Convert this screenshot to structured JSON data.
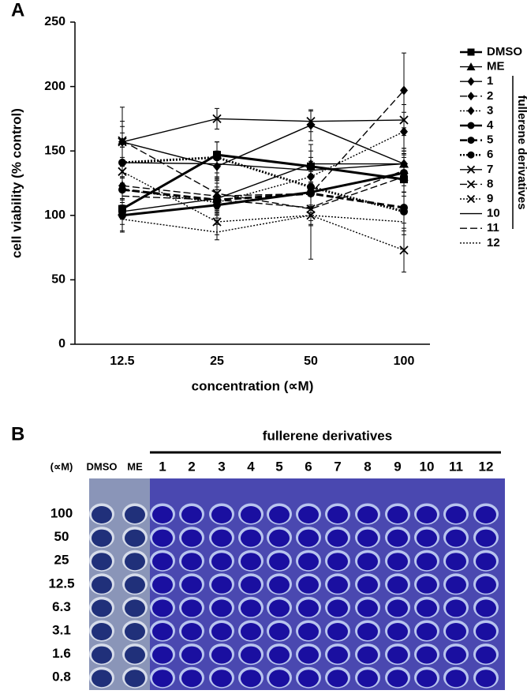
{
  "chart_data": {
    "type": "line",
    "panel_label": "A",
    "x_label": "concentration (∝M)",
    "y_label": "cell viability (% control)",
    "categories": [
      "12.5",
      "25",
      "50",
      "100"
    ],
    "ylim": [
      0,
      250
    ],
    "yticks": [
      0,
      50,
      100,
      150,
      200,
      250
    ],
    "legend_group_label": "fullerene derivatives",
    "legend_position": "right",
    "series": [
      {
        "name": "DMSO",
        "color": "#000000",
        "marker": "square",
        "dash": "solid",
        "thick": true,
        "values": [
          105,
          147,
          138,
          128
        ],
        "errors": [
          8,
          10,
          12,
          10
        ]
      },
      {
        "name": "ME",
        "color": "#000000",
        "marker": "triangle",
        "dash": "solid",
        "thick": false,
        "values": [
          103,
          113,
          140,
          140
        ],
        "errors": [
          10,
          12,
          15,
          12
        ]
      },
      {
        "name": "1",
        "color": "#000000",
        "marker": "diamond",
        "dash": "solid",
        "thick": false,
        "values": [
          157,
          138,
          170,
          140
        ],
        "errors": [
          12,
          10,
          12,
          12
        ]
      },
      {
        "name": "2",
        "color": "#000000",
        "marker": "diamond",
        "dash": "dashed",
        "thick": false,
        "values": [
          123,
          115,
          117,
          197
        ],
        "errors": [
          15,
          12,
          15,
          29
        ]
      },
      {
        "name": "3",
        "color": "#000000",
        "marker": "diamond",
        "dash": "dotted",
        "thick": false,
        "values": [
          120,
          110,
          130,
          165
        ],
        "errors": [
          10,
          10,
          12,
          15
        ]
      },
      {
        "name": "4",
        "color": "#000000",
        "marker": "circle",
        "dash": "solid",
        "thick": true,
        "values": [
          100,
          108,
          118,
          133
        ],
        "errors": [
          12,
          10,
          12,
          15
        ]
      },
      {
        "name": "5",
        "color": "#000000",
        "marker": "circle",
        "dash": "dashed",
        "thick": true,
        "values": [
          120,
          112,
          117,
          106
        ],
        "errors": [
          10,
          10,
          12,
          12
        ]
      },
      {
        "name": "6",
        "color": "#000000",
        "marker": "circle",
        "dash": "dotted",
        "thick": true,
        "values": [
          141,
          145,
          122,
          103
        ],
        "errors": [
          12,
          12,
          15,
          15
        ]
      },
      {
        "name": "7",
        "color": "#000000",
        "marker": "x",
        "dash": "solid",
        "thick": false,
        "values": [
          157,
          175,
          173,
          174
        ],
        "errors": [
          27,
          8,
          8,
          12
        ]
      },
      {
        "name": "8",
        "color": "#000000",
        "marker": "x",
        "dash": "dashed",
        "thick": false,
        "values": [
          158,
          117,
          105,
          130
        ],
        "errors": [
          15,
          12,
          12,
          15
        ]
      },
      {
        "name": "9",
        "color": "#000000",
        "marker": "x",
        "dash": "dotted",
        "thick": false,
        "values": [
          134,
          95,
          100,
          73
        ],
        "errors": [
          30,
          10,
          34,
          17
        ]
      },
      {
        "name": "10",
        "color": "#000000",
        "marker": "none",
        "dash": "solid",
        "thick": false,
        "values": [
          141,
          140,
          135,
          140
        ],
        "errors": [
          12,
          10,
          10,
          10
        ]
      },
      {
        "name": "11",
        "color": "#000000",
        "marker": "none",
        "dash": "dashed",
        "thick": false,
        "values": [
          115,
          112,
          106,
          135
        ],
        "errors": [
          10,
          8,
          10,
          12
        ]
      },
      {
        "name": "12",
        "color": "#000000",
        "marker": "none",
        "dash": "dotted",
        "thick": false,
        "values": [
          97,
          87,
          100,
          95
        ],
        "errors": [
          10,
          6,
          8,
          10
        ]
      }
    ]
  },
  "plate": {
    "panel_label": "B",
    "title": "fullerene derivatives",
    "unit": "(∝M)",
    "columns": [
      "DMSO",
      "ME",
      "1",
      "2",
      "3",
      "4",
      "5",
      "6",
      "7",
      "8",
      "9",
      "10",
      "11",
      "12"
    ],
    "rows": [
      "100",
      "50",
      "25",
      "12.5",
      "6.3",
      "3.1",
      "1.6",
      "0.8"
    ]
  }
}
